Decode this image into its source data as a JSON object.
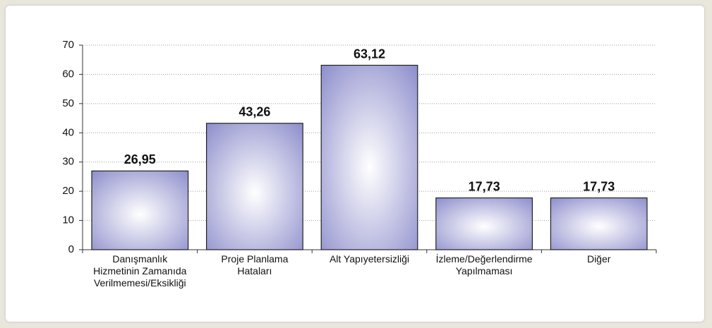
{
  "chart_data": {
    "type": "bar",
    "categories": [
      "Danışmanlık\nHizmetinin Zamanıda\nVerilmemesi/Eksikliği",
      "Proje Planlama\nHataları",
      "Alt Yapıyetersizliği",
      "İzleme/Değerlendirme\nYapılmaması",
      "Diğer"
    ],
    "values": [
      26.95,
      43.26,
      63.12,
      17.73,
      17.73
    ],
    "value_labels": [
      "26,95",
      "43,26",
      "63,12",
      "17,73",
      "17,73"
    ],
    "color": "#8c8ccc",
    "ylim": [
      0,
      70
    ],
    "yticks": [
      0,
      10,
      20,
      30,
      40,
      50,
      60,
      70
    ],
    "grid": true
  }
}
